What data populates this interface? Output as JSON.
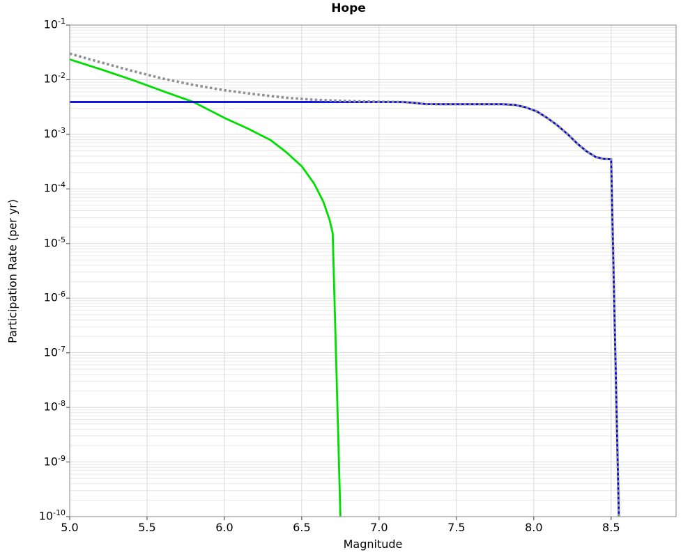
{
  "figure": {
    "title": "Hope",
    "xlabel": "Magnitude",
    "ylabel": "Participation Rate (per yr)"
  },
  "chart_data": {
    "type": "line",
    "title": "Hope",
    "xlabel": "Magnitude",
    "ylabel": "Participation Rate (per yr)",
    "legend": "none",
    "grid": {
      "horizontal": "log decades with minor lines",
      "vertical_step": 0.5
    },
    "x_axis": {
      "min": 5.0,
      "max": 8.92,
      "ticks": [
        {
          "v": 5.0,
          "label": "5.0"
        },
        {
          "v": 5.5,
          "label": "5.5"
        },
        {
          "v": 6.0,
          "label": "6.0"
        },
        {
          "v": 6.5,
          "label": "6.5"
        },
        {
          "v": 7.0,
          "label": "7.0"
        },
        {
          "v": 7.5,
          "label": "7.5"
        },
        {
          "v": 8.0,
          "label": "8.0"
        },
        {
          "v": 8.5,
          "label": "8.5"
        }
      ]
    },
    "y_axis": {
      "scale": "log",
      "max_exp": -1,
      "min_exp": -10,
      "tick_exponents": [
        -1,
        -2,
        -3,
        -4,
        -5,
        -6,
        -7,
        -8,
        -9,
        -10
      ]
    },
    "colors": {
      "green": "#00dd00",
      "blue": "#0000e0",
      "gray": "#909090",
      "grid_minor": "#e8e8e8",
      "grid_major": "#d9d9d9",
      "frame": "#999999",
      "tick": "#555555"
    },
    "series": [
      {
        "name": "solid-green",
        "color": "#00dd00",
        "style": "solid",
        "width": 2.8,
        "points": [
          [
            5.0,
            0.0235
          ],
          [
            5.2,
            0.0155
          ],
          [
            5.4,
            0.01
          ],
          [
            5.6,
            0.0062
          ],
          [
            5.8,
            0.0039
          ],
          [
            6.0,
            0.002
          ],
          [
            6.15,
            0.00128
          ],
          [
            6.3,
            0.00078
          ],
          [
            6.4,
            0.00047
          ],
          [
            6.5,
            0.00026
          ],
          [
            6.58,
            0.000125
          ],
          [
            6.64,
            5.8e-05
          ],
          [
            6.68,
            2.7e-05
          ],
          [
            6.7,
            1.55e-05
          ],
          [
            6.75,
            1e-10
          ]
        ]
      },
      {
        "name": "solid-blue",
        "color": "#0000e0",
        "style": "solid",
        "width": 2.8,
        "points": [
          [
            5.0,
            0.0039
          ],
          [
            7.15,
            0.0039
          ],
          [
            7.22,
            0.00378
          ],
          [
            7.3,
            0.00357
          ],
          [
            7.4,
            0.00355
          ],
          [
            7.8,
            0.00355
          ],
          [
            7.88,
            0.00345
          ],
          [
            7.95,
            0.0031
          ],
          [
            8.02,
            0.00262
          ],
          [
            8.08,
            0.00205
          ],
          [
            8.15,
            0.00148
          ],
          [
            8.22,
            0.001
          ],
          [
            8.28,
            0.00068
          ],
          [
            8.34,
            0.00049
          ],
          [
            8.4,
            0.000385
          ],
          [
            8.45,
            0.000355
          ],
          [
            8.5,
            0.00035
          ],
          [
            8.55,
            1e-10
          ]
        ]
      },
      {
        "name": "dotted-gray",
        "color": "#909090",
        "style": "dotted",
        "width": 3.6,
        "points": [
          [
            5.0,
            0.03
          ],
          [
            5.2,
            0.0208
          ],
          [
            5.4,
            0.0146
          ],
          [
            5.6,
            0.0105
          ],
          [
            5.8,
            0.008
          ],
          [
            6.0,
            0.0064
          ],
          [
            6.2,
            0.0054
          ],
          [
            6.4,
            0.00467
          ],
          [
            6.6,
            0.00425
          ],
          [
            6.8,
            0.00405
          ],
          [
            7.0,
            0.00395
          ],
          [
            7.15,
            0.0039
          ],
          [
            7.22,
            0.00378
          ],
          [
            7.3,
            0.00357
          ],
          [
            7.4,
            0.00355
          ],
          [
            7.8,
            0.00355
          ],
          [
            7.88,
            0.00345
          ],
          [
            7.95,
            0.0031
          ],
          [
            8.02,
            0.00262
          ],
          [
            8.08,
            0.00205
          ],
          [
            8.15,
            0.00148
          ],
          [
            8.22,
            0.001
          ],
          [
            8.28,
            0.00068
          ],
          [
            8.34,
            0.00049
          ],
          [
            8.4,
            0.000385
          ],
          [
            8.45,
            0.000355
          ],
          [
            8.5,
            0.00035
          ],
          [
            8.55,
            1e-10
          ]
        ]
      }
    ]
  }
}
